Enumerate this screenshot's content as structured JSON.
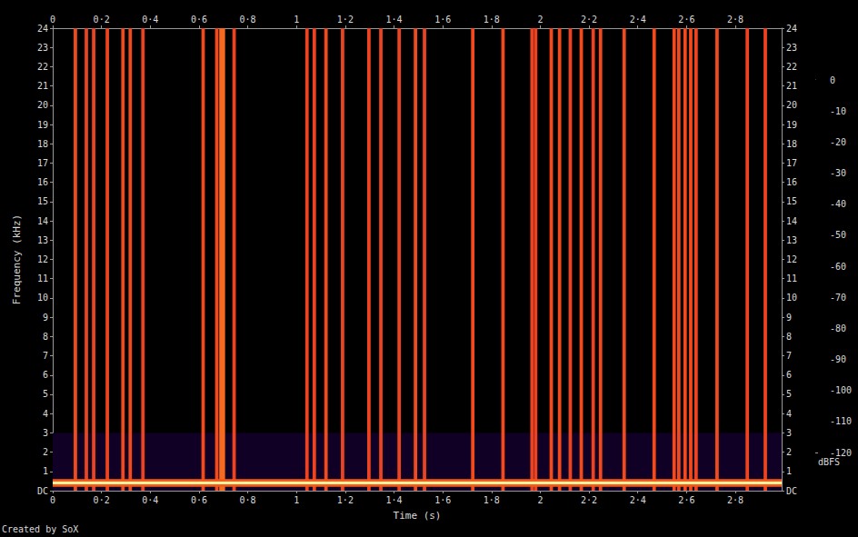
{
  "chart_data": {
    "type": "heatmap",
    "x_label": "Time (s)",
    "y_label": "Frequency (kHz)",
    "annotation": "Created by SoX",
    "xlim": [
      0,
      2.99
    ],
    "xticks": [
      0,
      {
        "value": 0.2,
        "label": "0·2"
      },
      {
        "value": 0.4,
        "label": "0·4"
      },
      {
        "value": 0.6,
        "label": "0·6"
      },
      {
        "value": 0.8,
        "label": "0·8"
      },
      1,
      {
        "value": 1.2,
        "label": "1·2"
      },
      {
        "value": 1.4,
        "label": "1·4"
      },
      {
        "value": 1.6,
        "label": "1·6"
      },
      {
        "value": 1.8,
        "label": "1·8"
      },
      2,
      {
        "value": 2.2,
        "label": "2·2"
      },
      {
        "value": 2.4,
        "label": "2·4"
      },
      {
        "value": 2.6,
        "label": "2·6"
      },
      {
        "value": 2.8,
        "label": "2·8"
      }
    ],
    "ylim": [
      0,
      24
    ],
    "yticks": [
      {
        "value": 0,
        "label": "DC"
      },
      1,
      2,
      3,
      4,
      5,
      6,
      7,
      8,
      9,
      10,
      11,
      12,
      13,
      14,
      15,
      16,
      17,
      18,
      19,
      20,
      21,
      22,
      23,
      24
    ],
    "colorbar": {
      "label": "dBFS",
      "range": [
        -120,
        0
      ],
      "ticks": [
        -120,
        -110,
        -100,
        -90,
        -80,
        -70,
        -60,
        -50,
        -40,
        -30,
        -20,
        -10,
        0
      ]
    },
    "cells": [
      [
        0,
        2.99,
        0,
        3,
        -110
      ],
      [
        0.086,
        0.1,
        0,
        24,
        -48
      ],
      [
        0.131,
        0.145,
        0,
        24,
        -50
      ],
      [
        0.161,
        0.175,
        0,
        24,
        -50
      ],
      [
        0.217,
        0.231,
        0,
        24,
        -50
      ],
      [
        0.281,
        0.295,
        0,
        24,
        -48
      ],
      [
        0.311,
        0.325,
        0,
        24,
        -48
      ],
      [
        0.363,
        0.377,
        0,
        24,
        -50
      ],
      [
        0.61,
        0.624,
        0,
        24,
        -48
      ],
      [
        0.666,
        0.68,
        0,
        24,
        -48
      ],
      [
        0.683,
        0.707,
        0,
        24,
        -42
      ],
      [
        0.737,
        0.751,
        0,
        24,
        -50
      ],
      [
        1.036,
        1.05,
        0,
        24,
        -50
      ],
      [
        1.066,
        1.08,
        0,
        24,
        -50
      ],
      [
        1.114,
        1.128,
        0,
        24,
        -48
      ],
      [
        1.182,
        1.196,
        0,
        24,
        -50
      ],
      [
        1.29,
        1.304,
        0,
        24,
        -50
      ],
      [
        1.339,
        1.353,
        0,
        24,
        -50
      ],
      [
        1.414,
        1.428,
        0,
        24,
        -50
      ],
      [
        1.481,
        1.495,
        0,
        24,
        -48
      ],
      [
        1.518,
        1.532,
        0,
        24,
        -50
      ],
      [
        1.716,
        1.73,
        0,
        24,
        -48
      ],
      [
        1.84,
        1.854,
        0,
        24,
        -48
      ],
      [
        1.959,
        1.973,
        0,
        24,
        -50
      ],
      [
        1.974,
        1.988,
        0,
        24,
        -50
      ],
      [
        2.038,
        2.052,
        0,
        24,
        -48
      ],
      [
        2.072,
        2.086,
        0,
        24,
        -48
      ],
      [
        2.116,
        2.13,
        0,
        24,
        -50
      ],
      [
        2.161,
        2.175,
        0,
        24,
        -48
      ],
      [
        2.21,
        2.224,
        0,
        24,
        -50
      ],
      [
        2.24,
        2.254,
        0,
        24,
        -48
      ],
      [
        2.337,
        2.351,
        0,
        24,
        -48
      ],
      [
        2.46,
        2.474,
        0,
        24,
        -48
      ],
      [
        2.542,
        2.556,
        0,
        24,
        -48
      ],
      [
        2.561,
        2.575,
        0,
        24,
        -48
      ],
      [
        2.587,
        2.601,
        0,
        24,
        -48
      ],
      [
        2.61,
        2.624,
        0,
        24,
        -48
      ],
      [
        2.632,
        2.646,
        0,
        24,
        -50
      ],
      [
        2.718,
        2.732,
        0,
        24,
        -48
      ],
      [
        2.842,
        2.856,
        0,
        24,
        -50
      ],
      [
        2.916,
        2.93,
        0,
        24,
        -50
      ],
      [
        0,
        2.99,
        0.2,
        0.6,
        -45
      ],
      [
        0,
        2.99,
        0.33,
        0.47,
        -10
      ]
    ]
  }
}
